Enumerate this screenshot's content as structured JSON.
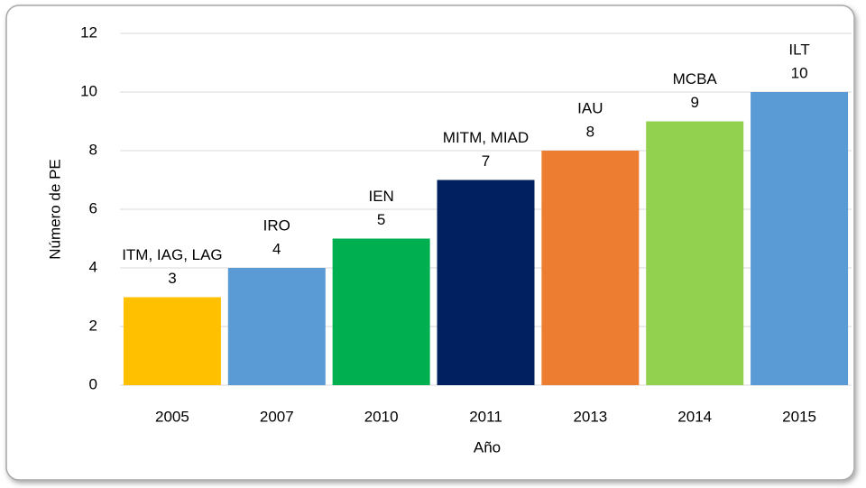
{
  "chart_data": {
    "type": "bar",
    "xlabel": "Año",
    "ylabel": "Número de PE",
    "categories": [
      "2005",
      "2007",
      "2010",
      "2011",
      "2013",
      "2014",
      "2015"
    ],
    "values": [
      3,
      4,
      5,
      7,
      8,
      9,
      10
    ],
    "colors": [
      "#FFC000",
      "#5B9BD5",
      "#00B050",
      "#002060",
      "#ED7D31",
      "#92D050",
      "#5B9BD5"
    ],
    "annotations": [
      "ITM, IAG, LAG",
      "IRO",
      "IEN",
      "MITM, MIAD",
      "IAU",
      "MCBA",
      "ILT"
    ],
    "ylim": [
      0,
      12
    ],
    "yticks": [
      0,
      2,
      4,
      6,
      8,
      10,
      12
    ],
    "grid": true
  }
}
